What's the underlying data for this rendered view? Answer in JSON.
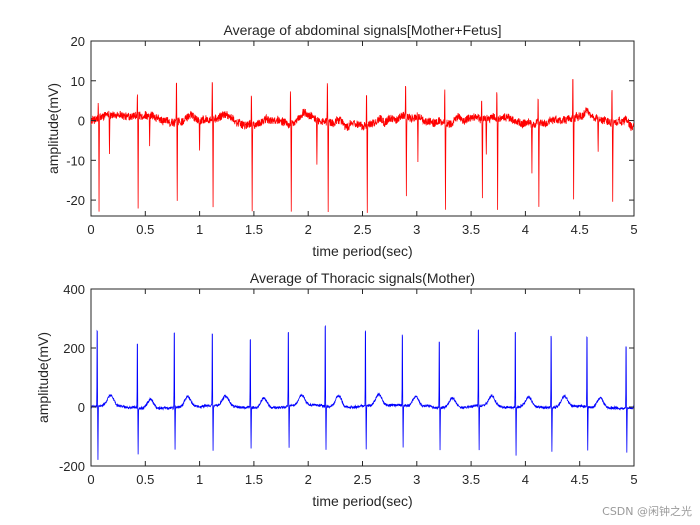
{
  "watermark": "CSDN @闲钟之光",
  "chart_data": [
    {
      "type": "line",
      "title": "Average of abdominal signals[Mother+Fetus]",
      "xlabel": "time period(sec)",
      "ylabel": "amplitude(mV)",
      "xlim": [
        0,
        5
      ],
      "ylim": [
        -24,
        20
      ],
      "xticks": [
        0,
        0.5,
        1,
        1.5,
        2,
        2.5,
        3,
        3.5,
        4,
        4.5,
        5
      ],
      "xtick_labels": [
        "0",
        "0.5",
        "1",
        "1.5",
        "2",
        "2.5",
        "3",
        "3.5",
        "4",
        "4.5",
        "5"
      ],
      "yticks": [
        -20,
        -10,
        0,
        10,
        20
      ],
      "ytick_labels": [
        "-20",
        "-10",
        "0",
        "10",
        "20"
      ],
      "series_color": "#ff0000",
      "beats": [
        {
          "t": 0.07,
          "pos": 4,
          "neg": -23
        },
        {
          "t": 0.43,
          "pos": 5,
          "neg": -23
        },
        {
          "t": 0.79,
          "pos": 11,
          "neg": -20
        },
        {
          "t": 1.12,
          "pos": 11,
          "neg": -22
        },
        {
          "t": 1.48,
          "pos": 8,
          "neg": -22
        },
        {
          "t": 1.84,
          "pos": 9,
          "neg": -22
        },
        {
          "t": 2.18,
          "pos": 11,
          "neg": -22
        },
        {
          "t": 2.54,
          "pos": 9,
          "neg": -21
        },
        {
          "t": 2.9,
          "pos": 8,
          "neg": -20
        },
        {
          "t": 3.26,
          "pos": 9,
          "neg": -22
        },
        {
          "t": 3.6,
          "pos": 5,
          "neg": -20
        },
        {
          "t": 3.74,
          "pos": 7,
          "neg": -24
        },
        {
          "t": 4.12,
          "pos": 6,
          "neg": -21
        },
        {
          "t": 4.44,
          "pos": 11,
          "neg": -20
        },
        {
          "t": 4.8,
          "pos": 10,
          "neg": -20
        }
      ],
      "extra_spikes": [
        {
          "t": 0.17,
          "v": -9
        },
        {
          "t": 0.54,
          "v": -8
        },
        {
          "t": 1.0,
          "v": -8
        },
        {
          "t": 2.08,
          "v": -11
        },
        {
          "t": 3.01,
          "v": -11
        },
        {
          "t": 3.64,
          "v": -10
        },
        {
          "t": 4.06,
          "v": -12
        },
        {
          "t": 4.67,
          "v": -9
        }
      ],
      "baseline": 0,
      "noise": 2
    },
    {
      "type": "line",
      "title": "Average of Thoracic signals(Mother)",
      "xlabel": "time period(sec)",
      "ylabel": "amplitude(mV)",
      "xlim": [
        0,
        5
      ],
      "ylim": [
        -200,
        400
      ],
      "xticks": [
        0,
        0.5,
        1,
        1.5,
        2,
        2.5,
        3,
        3.5,
        4,
        4.5,
        5
      ],
      "xtick_labels": [
        "0",
        "0.5",
        "1",
        "1.5",
        "2",
        "2.5",
        "3",
        "3.5",
        "4",
        "4.5",
        "5"
      ],
      "yticks": [
        -200,
        0,
        200,
        400
      ],
      "ytick_labels": [
        "-200",
        "0",
        "200",
        "400"
      ],
      "series_color": "#0000ff",
      "beats": [
        {
          "t": 0.06,
          "pos": 305,
          "neg": -185
        },
        {
          "t": 0.43,
          "pos": 260,
          "neg": -160
        },
        {
          "t": 0.77,
          "pos": 300,
          "neg": -140
        },
        {
          "t": 1.12,
          "pos": 285,
          "neg": -150
        },
        {
          "t": 1.47,
          "pos": 275,
          "neg": -140
        },
        {
          "t": 1.82,
          "pos": 295,
          "neg": -140
        },
        {
          "t": 2.16,
          "pos": 325,
          "neg": -150
        },
        {
          "t": 2.53,
          "pos": 300,
          "neg": -150
        },
        {
          "t": 2.87,
          "pos": 280,
          "neg": -145
        },
        {
          "t": 3.21,
          "pos": 270,
          "neg": -140
        },
        {
          "t": 3.57,
          "pos": 300,
          "neg": -150
        },
        {
          "t": 3.91,
          "pos": 305,
          "neg": -160
        },
        {
          "t": 4.24,
          "pos": 285,
          "neg": -150
        },
        {
          "t": 4.57,
          "pos": 280,
          "neg": -150
        },
        {
          "t": 4.93,
          "pos": 250,
          "neg": -150
        }
      ],
      "extra_spikes": [],
      "baseline": 0,
      "noise": 8
    }
  ]
}
